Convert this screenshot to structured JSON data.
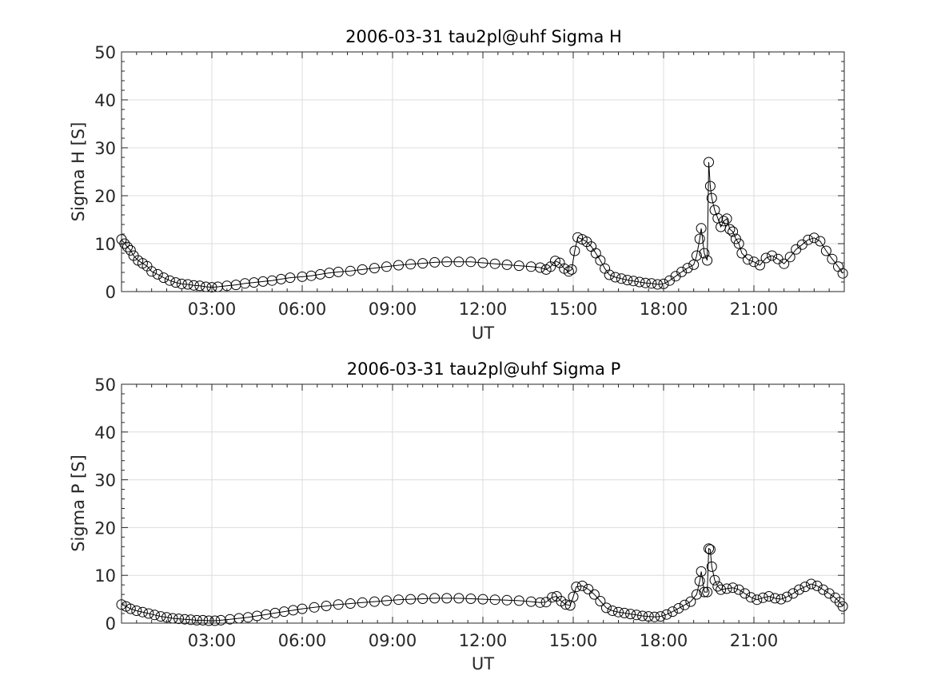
{
  "chart_data": [
    {
      "type": "line",
      "title": "2006-03-31  tau2pl@uhf Sigma H",
      "xlabel": "UT",
      "ylabel": "Sigma H [S]",
      "x_unit": "hours UT",
      "xlim": [
        0,
        24
      ],
      "ylim": [
        0,
        50
      ],
      "xticks": [
        3,
        6,
        9,
        12,
        15,
        18,
        21
      ],
      "xtick_labels": [
        "03:00",
        "06:00",
        "09:00",
        "12:00",
        "15:00",
        "18:00",
        "21:00"
      ],
      "yticks": [
        0,
        10,
        20,
        30,
        40,
        50
      ],
      "ytick_labels": [
        "0",
        "10",
        "20",
        "30",
        "40",
        "50"
      ],
      "grid": true,
      "marker": "open-circle",
      "color": "#000000",
      "series": [
        {
          "points": [
            [
              0.0,
              10.9
            ],
            [
              0.1,
              10.0
            ],
            [
              0.2,
              9.3
            ],
            [
              0.3,
              8.6
            ],
            [
              0.4,
              7.5
            ],
            [
              0.55,
              6.5
            ],
            [
              0.7,
              5.9
            ],
            [
              0.85,
              5.3
            ],
            [
              1.0,
              4.2
            ],
            [
              1.2,
              3.6
            ],
            [
              1.4,
              2.9
            ],
            [
              1.6,
              2.3
            ],
            [
              1.8,
              1.9
            ],
            [
              2.0,
              1.6
            ],
            [
              2.2,
              1.5
            ],
            [
              2.4,
              1.3
            ],
            [
              2.6,
              1.2
            ],
            [
              2.8,
              1.0
            ],
            [
              3.0,
              0.9
            ],
            [
              3.2,
              1.0
            ],
            [
              3.5,
              1.2
            ],
            [
              3.8,
              1.4
            ],
            [
              4.1,
              1.7
            ],
            [
              4.4,
              1.9
            ],
            [
              4.7,
              2.1
            ],
            [
              5.0,
              2.3
            ],
            [
              5.3,
              2.6
            ],
            [
              5.6,
              2.9
            ],
            [
              6.0,
              3.1
            ],
            [
              6.3,
              3.3
            ],
            [
              6.6,
              3.6
            ],
            [
              6.9,
              3.9
            ],
            [
              7.2,
              4.1
            ],
            [
              7.6,
              4.3
            ],
            [
              8.0,
              4.6
            ],
            [
              8.4,
              4.9
            ],
            [
              8.8,
              5.2
            ],
            [
              9.2,
              5.5
            ],
            [
              9.6,
              5.7
            ],
            [
              10.0,
              5.9
            ],
            [
              10.4,
              6.1
            ],
            [
              10.8,
              6.2
            ],
            [
              11.2,
              6.2
            ],
            [
              11.6,
              6.2
            ],
            [
              12.0,
              6.0
            ],
            [
              12.4,
              5.8
            ],
            [
              12.8,
              5.6
            ],
            [
              13.2,
              5.4
            ],
            [
              13.6,
              5.2
            ],
            [
              13.9,
              5.0
            ],
            [
              14.1,
              4.6
            ],
            [
              14.25,
              5.2
            ],
            [
              14.4,
              6.4
            ],
            [
              14.55,
              6.0
            ],
            [
              14.7,
              4.8
            ],
            [
              14.85,
              4.2
            ],
            [
              14.95,
              4.6
            ],
            [
              15.05,
              8.5
            ],
            [
              15.15,
              11.3
            ],
            [
              15.3,
              10.9
            ],
            [
              15.45,
              10.4
            ],
            [
              15.6,
              9.4
            ],
            [
              15.75,
              8.0
            ],
            [
              15.9,
              6.5
            ],
            [
              16.05,
              4.8
            ],
            [
              16.2,
              3.5
            ],
            [
              16.4,
              3.0
            ],
            [
              16.6,
              2.7
            ],
            [
              16.8,
              2.4
            ],
            [
              17.0,
              2.2
            ],
            [
              17.2,
              2.0
            ],
            [
              17.4,
              1.8
            ],
            [
              17.6,
              1.7
            ],
            [
              17.8,
              1.5
            ],
            [
              18.0,
              1.6
            ],
            [
              18.2,
              2.3
            ],
            [
              18.4,
              3.2
            ],
            [
              18.6,
              4.1
            ],
            [
              18.8,
              4.9
            ],
            [
              19.0,
              5.6
            ],
            [
              19.1,
              7.5
            ],
            [
              19.2,
              11.0
            ],
            [
              19.25,
              13.2
            ],
            [
              19.35,
              8.0
            ],
            [
              19.45,
              6.5
            ],
            [
              19.5,
              27.0
            ],
            [
              19.55,
              22.0
            ],
            [
              19.6,
              19.5
            ],
            [
              19.7,
              17.0
            ],
            [
              19.8,
              15.3
            ],
            [
              19.9,
              13.5
            ],
            [
              20.0,
              14.7
            ],
            [
              20.1,
              15.2
            ],
            [
              20.2,
              13.0
            ],
            [
              20.3,
              12.5
            ],
            [
              20.4,
              11.0
            ],
            [
              20.5,
              10.0
            ],
            [
              20.6,
              8.0
            ],
            [
              20.8,
              6.7
            ],
            [
              21.0,
              6.2
            ],
            [
              21.2,
              5.5
            ],
            [
              21.4,
              7.0
            ],
            [
              21.6,
              7.5
            ],
            [
              21.8,
              6.8
            ],
            [
              22.0,
              5.8
            ],
            [
              22.2,
              7.2
            ],
            [
              22.4,
              8.8
            ],
            [
              22.6,
              9.8
            ],
            [
              22.8,
              10.8
            ],
            [
              23.0,
              11.2
            ],
            [
              23.2,
              10.5
            ],
            [
              23.4,
              8.5
            ],
            [
              23.6,
              6.8
            ],
            [
              23.8,
              5.2
            ],
            [
              23.95,
              3.8
            ]
          ]
        }
      ]
    },
    {
      "type": "line",
      "title": "2006-03-31  tau2pl@uhf Sigma P",
      "xlabel": "UT",
      "ylabel": "Sigma P [S]",
      "x_unit": "hours UT",
      "xlim": [
        0,
        24
      ],
      "ylim": [
        0,
        50
      ],
      "xticks": [
        3,
        6,
        9,
        12,
        15,
        18,
        21
      ],
      "xtick_labels": [
        "03:00",
        "06:00",
        "09:00",
        "12:00",
        "15:00",
        "18:00",
        "21:00"
      ],
      "yticks": [
        0,
        10,
        20,
        30,
        40,
        50
      ],
      "ytick_labels": [
        "0",
        "10",
        "20",
        "30",
        "40",
        "50"
      ],
      "grid": true,
      "marker": "open-circle",
      "color": "#000000",
      "series": [
        {
          "points": [
            [
              0.0,
              3.9
            ],
            [
              0.15,
              3.5
            ],
            [
              0.3,
              3.0
            ],
            [
              0.5,
              2.6
            ],
            [
              0.7,
              2.3
            ],
            [
              0.9,
              2.0
            ],
            [
              1.1,
              1.7
            ],
            [
              1.3,
              1.4
            ],
            [
              1.5,
              1.2
            ],
            [
              1.7,
              1.0
            ],
            [
              1.9,
              0.9
            ],
            [
              2.1,
              0.8
            ],
            [
              2.3,
              0.7
            ],
            [
              2.5,
              0.6
            ],
            [
              2.7,
              0.6
            ],
            [
              2.9,
              0.5
            ],
            [
              3.1,
              0.5
            ],
            [
              3.3,
              0.6
            ],
            [
              3.6,
              0.8
            ],
            [
              3.9,
              1.0
            ],
            [
              4.2,
              1.2
            ],
            [
              4.5,
              1.5
            ],
            [
              4.8,
              1.8
            ],
            [
              5.1,
              2.1
            ],
            [
              5.4,
              2.4
            ],
            [
              5.7,
              2.7
            ],
            [
              6.0,
              3.0
            ],
            [
              6.4,
              3.3
            ],
            [
              6.8,
              3.6
            ],
            [
              7.2,
              3.9
            ],
            [
              7.6,
              4.1
            ],
            [
              8.0,
              4.3
            ],
            [
              8.4,
              4.5
            ],
            [
              8.8,
              4.7
            ],
            [
              9.2,
              4.9
            ],
            [
              9.6,
              5.0
            ],
            [
              10.0,
              5.1
            ],
            [
              10.4,
              5.2
            ],
            [
              10.8,
              5.2
            ],
            [
              11.2,
              5.2
            ],
            [
              11.6,
              5.1
            ],
            [
              12.0,
              5.0
            ],
            [
              12.4,
              4.9
            ],
            [
              12.8,
              4.8
            ],
            [
              13.2,
              4.7
            ],
            [
              13.6,
              4.5
            ],
            [
              13.9,
              4.3
            ],
            [
              14.1,
              4.4
            ],
            [
              14.3,
              5.4
            ],
            [
              14.45,
              5.6
            ],
            [
              14.6,
              4.6
            ],
            [
              14.75,
              3.9
            ],
            [
              14.9,
              3.7
            ],
            [
              15.0,
              5.5
            ],
            [
              15.1,
              7.6
            ],
            [
              15.3,
              7.8
            ],
            [
              15.5,
              7.1
            ],
            [
              15.7,
              6.0
            ],
            [
              15.9,
              4.6
            ],
            [
              16.1,
              3.2
            ],
            [
              16.3,
              2.6
            ],
            [
              16.5,
              2.3
            ],
            [
              16.7,
              2.1
            ],
            [
              16.9,
              1.9
            ],
            [
              17.1,
              1.7
            ],
            [
              17.3,
              1.5
            ],
            [
              17.5,
              1.4
            ],
            [
              17.7,
              1.3
            ],
            [
              17.9,
              1.4
            ],
            [
              18.1,
              1.8
            ],
            [
              18.3,
              2.4
            ],
            [
              18.5,
              3.1
            ],
            [
              18.7,
              3.8
            ],
            [
              18.9,
              4.5
            ],
            [
              19.1,
              6.0
            ],
            [
              19.2,
              8.8
            ],
            [
              19.25,
              10.8
            ],
            [
              19.35,
              6.5
            ],
            [
              19.45,
              6.5
            ],
            [
              19.5,
              15.6
            ],
            [
              19.55,
              15.4
            ],
            [
              19.6,
              11.8
            ],
            [
              19.7,
              9.0
            ],
            [
              19.8,
              7.7
            ],
            [
              19.9,
              7.0
            ],
            [
              20.1,
              7.2
            ],
            [
              20.3,
              7.4
            ],
            [
              20.5,
              7.0
            ],
            [
              20.7,
              6.2
            ],
            [
              20.9,
              5.4
            ],
            [
              21.1,
              4.9
            ],
            [
              21.3,
              5.3
            ],
            [
              21.5,
              5.6
            ],
            [
              21.7,
              5.2
            ],
            [
              21.9,
              5.0
            ],
            [
              22.1,
              5.5
            ],
            [
              22.3,
              6.2
            ],
            [
              22.5,
              7.0
            ],
            [
              22.7,
              7.6
            ],
            [
              22.9,
              8.2
            ],
            [
              23.1,
              7.8
            ],
            [
              23.3,
              7.0
            ],
            [
              23.5,
              6.2
            ],
            [
              23.7,
              5.3
            ],
            [
              23.85,
              4.4
            ],
            [
              23.95,
              3.5
            ]
          ]
        }
      ]
    }
  ]
}
